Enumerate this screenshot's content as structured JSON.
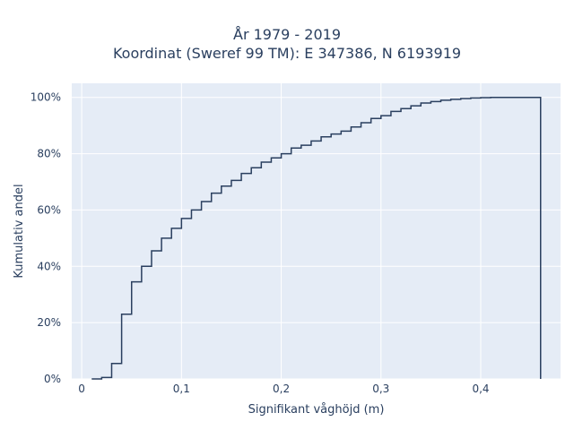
{
  "chart_data": {
    "type": "line",
    "step": true,
    "title_line1": "År 1979 - 2019",
    "title_line2": "Koordinat (Sweref 99 TM): E 347386, N 6193919",
    "xlabel": "Signifikant våghöjd (m)",
    "ylabel": "Kumulativ andel",
    "xlim": [
      -0.01,
      0.48
    ],
    "ylim": [
      0,
      1.05
    ],
    "x_ticks": [
      0,
      0.1,
      0.2,
      0.3,
      0.4
    ],
    "x_tick_labels": [
      "0",
      "0,1",
      "0,2",
      "0,3",
      "0,4"
    ],
    "y_ticks": [
      0,
      0.2,
      0.4,
      0.6,
      0.8,
      1.0
    ],
    "y_tick_labels": [
      "0%",
      "20%",
      "40%",
      "60%",
      "80%",
      "100%"
    ],
    "grid": true,
    "colors": {
      "line": "#2a3f5f",
      "plot_bg": "#e5ecf6",
      "grid": "#ffffff",
      "text": "#2a3f5f"
    },
    "series": [
      {
        "x": [
          0.01,
          0.02,
          0.03,
          0.04,
          0.05,
          0.06,
          0.07,
          0.08,
          0.09,
          0.1,
          0.11,
          0.12,
          0.13,
          0.14,
          0.15,
          0.16,
          0.17,
          0.18,
          0.19,
          0.2,
          0.21,
          0.22,
          0.23,
          0.24,
          0.25,
          0.26,
          0.27,
          0.28,
          0.29,
          0.3,
          0.31,
          0.32,
          0.33,
          0.34,
          0.35,
          0.36,
          0.37,
          0.38,
          0.39,
          0.4,
          0.41,
          0.42,
          0.43,
          0.44,
          0.45,
          0.46
        ],
        "y": [
          0.0,
          0.005,
          0.055,
          0.23,
          0.345,
          0.4,
          0.455,
          0.5,
          0.535,
          0.57,
          0.6,
          0.63,
          0.66,
          0.685,
          0.705,
          0.73,
          0.75,
          0.77,
          0.785,
          0.8,
          0.82,
          0.83,
          0.845,
          0.86,
          0.87,
          0.88,
          0.895,
          0.91,
          0.925,
          0.935,
          0.95,
          0.96,
          0.97,
          0.98,
          0.985,
          0.99,
          0.993,
          0.996,
          0.998,
          0.999,
          1.0,
          1.0,
          1.0,
          1.0,
          1.0,
          0.0
        ]
      }
    ]
  }
}
